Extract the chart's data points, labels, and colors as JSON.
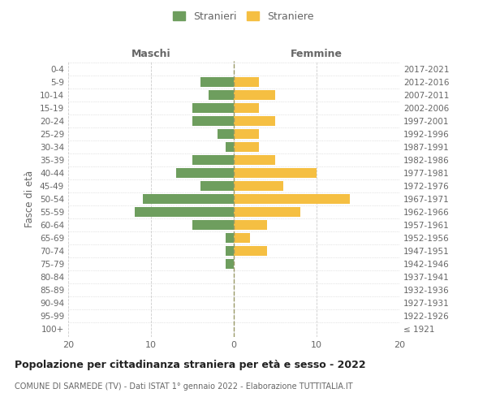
{
  "age_groups": [
    "100+",
    "95-99",
    "90-94",
    "85-89",
    "80-84",
    "75-79",
    "70-74",
    "65-69",
    "60-64",
    "55-59",
    "50-54",
    "45-49",
    "40-44",
    "35-39",
    "30-34",
    "25-29",
    "20-24",
    "15-19",
    "10-14",
    "5-9",
    "0-4"
  ],
  "birth_years": [
    "≤ 1921",
    "1922-1926",
    "1927-1931",
    "1932-1936",
    "1937-1941",
    "1942-1946",
    "1947-1951",
    "1952-1956",
    "1957-1961",
    "1962-1966",
    "1967-1971",
    "1972-1976",
    "1977-1981",
    "1982-1986",
    "1987-1991",
    "1992-1996",
    "1997-2001",
    "2002-2006",
    "2007-2011",
    "2012-2016",
    "2017-2021"
  ],
  "maschi": [
    0,
    0,
    0,
    0,
    0,
    1,
    1,
    1,
    5,
    12,
    11,
    4,
    7,
    5,
    1,
    2,
    5,
    5,
    3,
    4,
    0
  ],
  "femmine": [
    0,
    0,
    0,
    0,
    0,
    0,
    4,
    2,
    4,
    8,
    14,
    6,
    10,
    5,
    3,
    3,
    5,
    3,
    5,
    3,
    0
  ],
  "maschi_color": "#6e9e5e",
  "femmine_color": "#f5bf42",
  "bar_height": 0.75,
  "xlim": 20,
  "title": "Popolazione per cittadinanza straniera per età e sesso - 2022",
  "subtitle": "COMUNE DI SARMEDE (TV) - Dati ISTAT 1° gennaio 2022 - Elaborazione TUTTITALIA.IT",
  "ylabel_left": "Fasce di età",
  "xlabel_left": "Maschi",
  "xlabel_top_right": "Femmine",
  "legend_stranieri": "Stranieri",
  "legend_straniere": "Straniere",
  "background_color": "#ffffff",
  "grid_color": "#cccccc",
  "text_color": "#666666",
  "dashed_line_color": "#999966"
}
